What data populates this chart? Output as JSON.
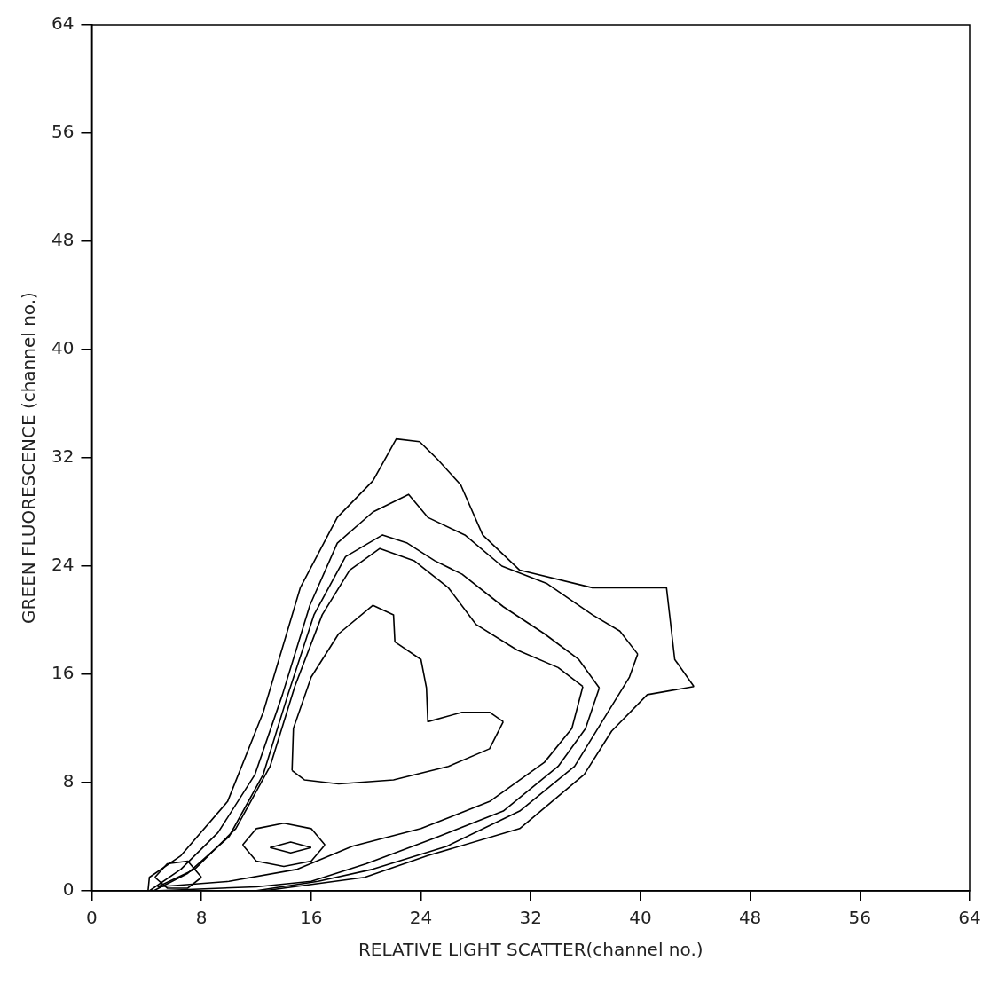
{
  "chart_data": {
    "type": "line",
    "xlabel": "RELATIVE LIGHT SCATTER(channel no.)",
    "ylabel": "GREEN FLUORESCENCE (channel no.)",
    "xlim": [
      0,
      64
    ],
    "ylim": [
      0,
      64
    ],
    "xticks": [
      0,
      8,
      16,
      24,
      32,
      40,
      48,
      56,
      64
    ],
    "yticks": [
      0,
      8,
      16,
      24,
      32,
      40,
      48,
      56,
      64
    ],
    "grid": false,
    "legend": false,
    "marker": "none",
    "line_style": "solid",
    "series": [
      {
        "color": "#000000",
        "x": [
          4.1,
          4.2,
          6.5,
          9.9,
          12.5,
          15.2,
          17.9,
          20.5,
          22.2,
          23.9,
          25.2,
          26.9,
          28.5,
          31.2,
          36.5,
          41.9,
          42.5,
          43.9
        ],
        "values": [
          0,
          1,
          2.6,
          6.6,
          13.2,
          22.4,
          27.6,
          30.3,
          33.4,
          33.2,
          31.9,
          30,
          26.3,
          23.7,
          22.4,
          22.4,
          17.1,
          15.1
        ]
      },
      {
        "color": "#000000",
        "x": [
          4.1,
          12.5,
          19.9,
          24.5,
          31.2,
          35.9,
          37.9,
          40.5,
          43.9
        ],
        "values": [
          0,
          0,
          1,
          2.6,
          4.6,
          8.6,
          11.8,
          14.5,
          15.1
        ]
      },
      {
        "color": "#000000",
        "x": [
          4.2,
          6.5,
          9.2,
          11.9,
          13.9,
          15.9,
          17.9,
          20.5,
          23.1,
          24.5,
          27.2,
          29.9,
          33.2,
          36.5,
          38.5,
          39.8
        ],
        "values": [
          0,
          1.6,
          4.3,
          8.6,
          14.5,
          21.1,
          25.7,
          28,
          29.3,
          27.6,
          26.3,
          24,
          22.7,
          20.4,
          19.2,
          17.5
        ]
      },
      {
        "color": "#000000",
        "x": [
          4.2,
          11.9,
          16.5,
          20.5,
          25.9,
          31.2,
          35.2,
          37.2,
          39.2,
          39.8
        ],
        "values": [
          0,
          0,
          0.7,
          1.6,
          3.3,
          5.9,
          9.2,
          12.5,
          15.8,
          17.5
        ]
      },
      {
        "color": "#000000",
        "x": [
          4.5,
          7,
          10,
          12.5,
          14.3,
          16.2,
          18.5,
          21.2,
          23,
          25,
          27,
          30,
          33,
          35.5,
          37
        ],
        "values": [
          0,
          1.3,
          4,
          8.6,
          14.5,
          20.4,
          24.7,
          26.3,
          25.7,
          24.4,
          23.4,
          21,
          19,
          17.1,
          15
        ]
      },
      {
        "color": "#000000",
        "x": [
          4.5,
          12,
          16,
          20,
          25,
          30,
          34,
          36,
          37
        ],
        "values": [
          0,
          0.3,
          0.7,
          2,
          3.9,
          5.9,
          9.2,
          12,
          15
        ]
      },
      {
        "color": "#000000",
        "x": [
          4.8,
          7.5,
          10.5,
          13,
          14.8,
          16.8,
          18.8,
          21,
          23.5,
          26,
          28,
          31,
          34,
          35.8
        ],
        "values": [
          0.3,
          1.6,
          4.6,
          9.2,
          15.1,
          20.4,
          23.7,
          25.3,
          24.4,
          22.4,
          19.7,
          17.8,
          16.5,
          15.1
        ]
      },
      {
        "color": "#000000",
        "x": [
          4.8,
          10,
          15,
          19,
          24,
          29,
          33,
          35,
          35.8
        ],
        "values": [
          0.3,
          0.7,
          1.6,
          3.3,
          4.6,
          6.6,
          9.5,
          12,
          15.1
        ]
      },
      {
        "color": "#000000",
        "x": [
          14.6,
          14.7,
          16,
          18,
          20.5,
          22,
          22.1,
          24,
          24.4,
          24.5,
          27,
          29,
          30
        ],
        "values": [
          8.9,
          12,
          15.8,
          19,
          21.1,
          20.4,
          18.4,
          17.1,
          15,
          12.5,
          13.2,
          13.2,
          12.5
        ]
      },
      {
        "color": "#000000",
        "x": [
          14.6,
          15.5,
          18,
          22,
          26,
          29,
          30
        ],
        "values": [
          8.9,
          8.2,
          7.9,
          8.2,
          9.2,
          10.5,
          12.5
        ]
      },
      {
        "color": "#000000",
        "x": [
          11,
          12,
          14,
          16,
          17
        ],
        "values": [
          3.4,
          4.6,
          5,
          4.6,
          3.4
        ]
      },
      {
        "color": "#000000",
        "x": [
          11,
          12,
          14,
          16,
          17
        ],
        "values": [
          3.4,
          2.2,
          1.8,
          2.2,
          3.4
        ]
      },
      {
        "color": "#000000",
        "x": [
          13,
          14.5,
          16
        ],
        "values": [
          3.2,
          3.6,
          3.2
        ]
      },
      {
        "color": "#000000",
        "x": [
          13,
          14.5,
          16
        ],
        "values": [
          3.2,
          2.8,
          3.2
        ]
      },
      {
        "color": "#000000",
        "x": [
          4.6,
          5.5,
          7,
          8
        ],
        "values": [
          1,
          2,
          2.2,
          1
        ]
      },
      {
        "color": "#000000",
        "x": [
          4.6,
          5.5,
          7,
          8
        ],
        "values": [
          1,
          0.2,
          0.2,
          1
        ]
      }
    ]
  }
}
